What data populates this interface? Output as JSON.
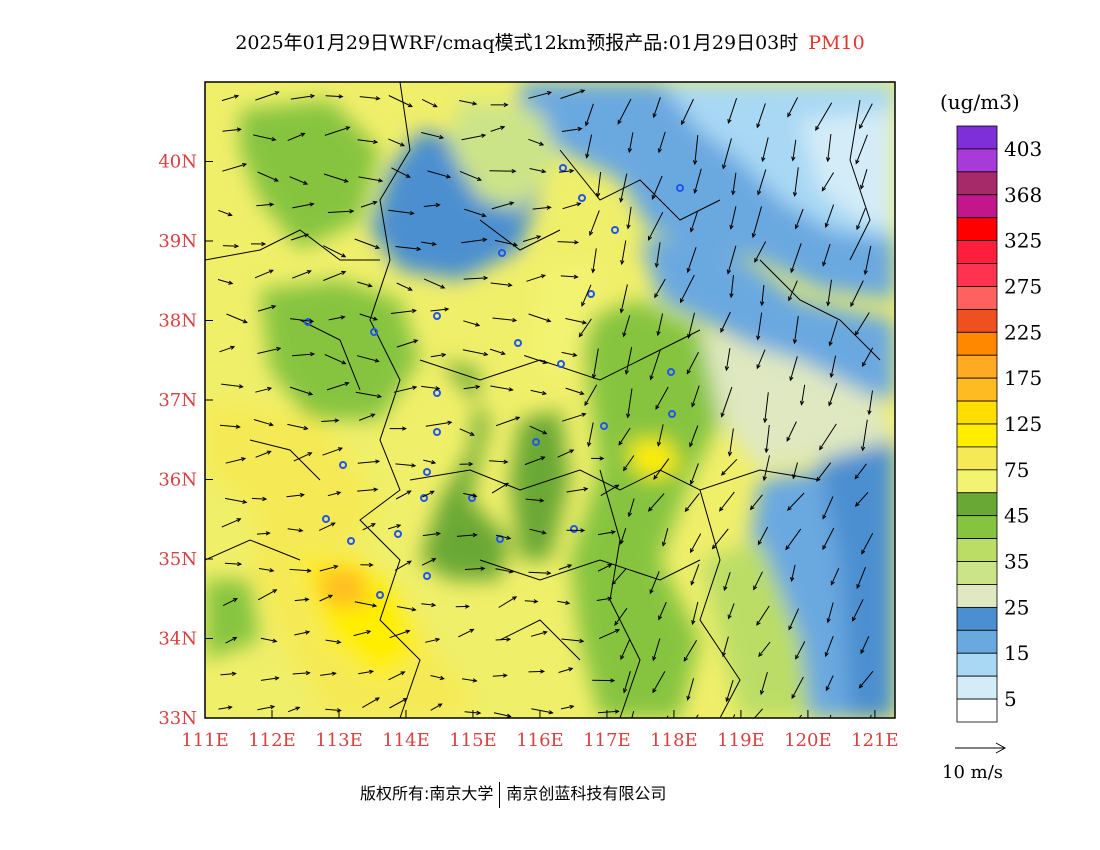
{
  "header": {
    "title": "2025年01月29日WRF/cmaq模式12km预报产品:01月29日03时",
    "variable": "PM10"
  },
  "map": {
    "x_axis_labels": [
      "111E",
      "112E",
      "113E",
      "114E",
      "115E",
      "116E",
      "117E",
      "118E",
      "119E",
      "120E",
      "121E"
    ],
    "y_axis_labels": [
      "40N",
      "39N",
      "38N",
      "37N",
      "36N",
      "35N",
      "34N",
      "33N"
    ],
    "lon_range": [
      111,
      121.3
    ],
    "lat_range": [
      33,
      41
    ]
  },
  "colorbar": {
    "unit": "(ug/m3)",
    "labels": [
      "403",
      "368",
      "325",
      "275",
      "225",
      "175",
      "125",
      "75",
      "45",
      "35",
      "25",
      "15",
      "5"
    ],
    "colors": [
      "#7f2fd8",
      "#a83ad8",
      "#a62a6a",
      "#c2168a",
      "#ff0000",
      "#ff1e3c",
      "#ff3250",
      "#ff6060",
      "#ee5020",
      "#ff8800",
      "#ffaa22",
      "#ffbb22",
      "#ffdd00",
      "#ffee00",
      "#f5ea55",
      "#f3f372",
      "#6aa835",
      "#86c440",
      "#bbdd66",
      "#cce488",
      "#dfe8c0",
      "#4b8fd0",
      "#6aa8e0",
      "#a8d8f4",
      "#d4ecf8",
      "#ffffff"
    ]
  },
  "wind_legend": {
    "label": "10 m/s"
  },
  "footer": {
    "copyright_prefix": "版权所有:南京大学",
    "copyright_company": "南京创蓝科技有限公司"
  }
}
